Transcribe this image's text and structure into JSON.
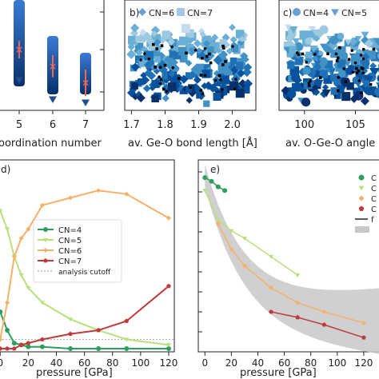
{
  "chart_data": [
    {
      "panel": "a",
      "type": "scatter",
      "xlabel": "oordination number",
      "x_ticks": [
        "5",
        "6",
        "7"
      ],
      "series": [
        {
          "values": [
            {
              "x": 5,
              "y_mid": 0.55,
              "err": 0.08
            },
            {
              "x": 6,
              "y_mid": 0.4,
              "err": 0.1
            },
            {
              "x": 7,
              "y_mid": 0.25,
              "err": 0.12
            }
          ]
        }
      ]
    },
    {
      "panel": "b",
      "panel_label": "b)",
      "type": "scatter",
      "xlabel": "av. Ge-O bond length [Å]",
      "x_ticks": [
        "1.7",
        "1.8",
        "1.9",
        "2.0"
      ],
      "xlim": [
        1.68,
        2.07
      ],
      "legend": [
        "CN=6",
        "CN=7"
      ]
    },
    {
      "panel": "c",
      "panel_label": "c)",
      "type": "scatter",
      "xlabel": "av. O-Ge-O angle",
      "x_ticks": [
        "100",
        "105"
      ],
      "xlim": [
        97.5,
        108.5
      ],
      "legend": [
        "CN=4",
        "CN=5"
      ]
    },
    {
      "panel": "d",
      "panel_label": "d)",
      "type": "line",
      "xlabel": "pressure [GPa]",
      "x_ticks": [
        "0",
        "20",
        "40",
        "60",
        "80",
        "100",
        "120"
      ],
      "xlim": [
        -3,
        124
      ],
      "ylim": [
        0,
        1
      ],
      "legend_position": "center-right",
      "series": [
        {
          "name": "CN=4",
          "color": "#2e9e5e",
          "x": [
            0,
            5,
            10,
            15,
            20,
            30,
            50,
            70,
            90,
            120
          ],
          "y": [
            0.2,
            0.1,
            0.03,
            0.02,
            0.01,
            0.01,
            0.0,
            0.0,
            0.0,
            0.0
          ]
        },
        {
          "name": "CN=5",
          "color": "#b8e07c",
          "x": [
            0,
            5,
            10,
            15,
            20,
            30,
            50,
            70,
            90,
            120
          ],
          "y": [
            0.75,
            0.65,
            0.5,
            0.4,
            0.33,
            0.25,
            0.16,
            0.1,
            0.05,
            0.02
          ]
        },
        {
          "name": "CN=6",
          "color": "#f5b06a",
          "x": [
            0,
            5,
            10,
            15,
            20,
            30,
            50,
            70,
            90,
            120
          ],
          "y": [
            0.05,
            0.25,
            0.5,
            0.6,
            0.65,
            0.78,
            0.82,
            0.86,
            0.84,
            0.71
          ]
        },
        {
          "name": "CN=7",
          "color": "#c0393b",
          "x": [
            0,
            5,
            10,
            15,
            20,
            30,
            50,
            70,
            90,
            120
          ],
          "y": [
            0.0,
            0.0,
            0.0,
            0.02,
            0.03,
            0.05,
            0.08,
            0.1,
            0.15,
            0.34
          ]
        }
      ],
      "extra_legend": "analysis cutoff",
      "cutoff_y": 0.05
    },
    {
      "panel": "e",
      "panel_label": "e)",
      "type": "scatter",
      "xlabel": "pressure [GPa]",
      "x_ticks": [
        "0",
        "20",
        "40",
        "60",
        "80",
        "100",
        "120"
      ],
      "xlim": [
        -5,
        140
      ],
      "ylim": [
        0,
        1
      ],
      "legend_position": "top-right",
      "series": [
        {
          "color": "#2e9e5e",
          "x": [
            0,
            5,
            10,
            15
          ],
          "y": [
            0.93,
            0.91,
            0.88,
            0.86
          ]
        },
        {
          "color": "#b8e07c",
          "x": [
            0,
            10,
            20,
            30,
            50,
            70
          ],
          "y": [
            0.86,
            0.7,
            0.64,
            0.6,
            0.5,
            0.4
          ]
        },
        {
          "color": "#f5b06a",
          "x": [
            10,
            20,
            30,
            50,
            70,
            90,
            120
          ],
          "y": [
            0.68,
            0.54,
            0.45,
            0.33,
            0.25,
            0.2,
            0.14
          ]
        },
        {
          "color": "#c0393b",
          "x": [
            50,
            70,
            90,
            120
          ],
          "y": [
            0.2,
            0.17,
            0.13,
            0.06
          ]
        }
      ],
      "legend": [
        "C",
        "C",
        "C",
        "C",
        "f"
      ]
    }
  ]
}
